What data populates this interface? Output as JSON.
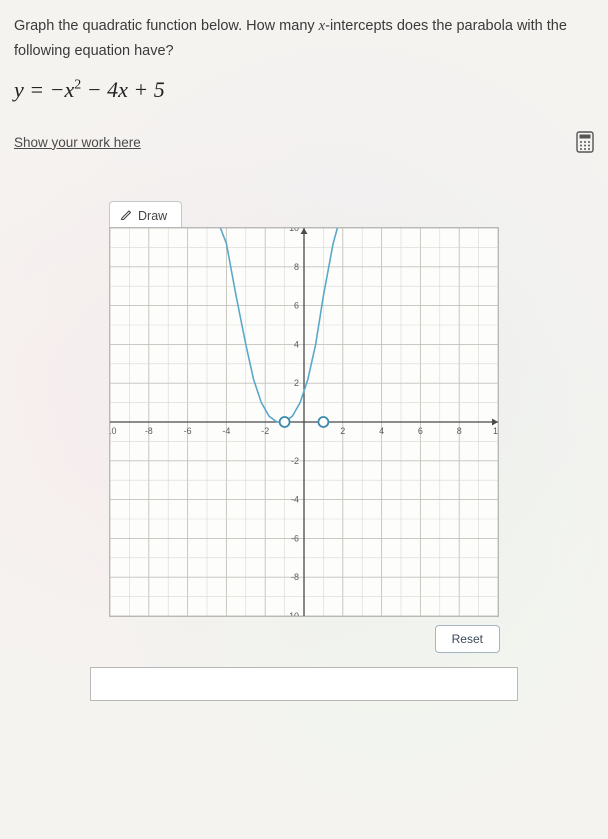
{
  "question": {
    "prompt_text": "Graph the quadratic function below. How many x-intercepts does the parabola with the following equation have?",
    "equation_html": "y = −x² − 4x + 5"
  },
  "work": {
    "link_text": "Show your work here",
    "calc_icon_name": "calculator-icon"
  },
  "draw_tool": {
    "label": "Draw",
    "pen_icon_name": "pen-icon"
  },
  "chart": {
    "type": "line",
    "xlim": [
      -10,
      10
    ],
    "ylim": [
      -10,
      10
    ],
    "xtick_step": 2,
    "ytick_step": 2,
    "xticks": [
      -10,
      -8,
      -6,
      -4,
      -2,
      2,
      4,
      6,
      8,
      10
    ],
    "yticks": [
      -10,
      -8,
      -6,
      -4,
      -2,
      2,
      4,
      6,
      8,
      10
    ],
    "grid_step_minor": 1,
    "grid_color_minor": "#d8d8d0",
    "grid_color_major": "#c2c2ba",
    "axis_color": "#4a4a4a",
    "axis_width": 1.3,
    "tick_label_fontsize": 9,
    "tick_label_color": "#5a5a5a",
    "curve": {
      "color": "#5aa8c8",
      "width": 1.6,
      "points": [
        [
          -4.5,
          10.5
        ],
        [
          -4,
          9.2
        ],
        [
          -3.5,
          6.5
        ],
        [
          -3,
          4
        ],
        [
          -2.6,
          2.2
        ],
        [
          -2.2,
          1
        ],
        [
          -1.8,
          0.3
        ],
        [
          -1.4,
          0
        ],
        [
          -1,
          0
        ],
        [
          -0.6,
          0.3
        ],
        [
          -0.2,
          1
        ],
        [
          0.2,
          2.2
        ],
        [
          0.6,
          4
        ],
        [
          1,
          6.5
        ],
        [
          1.5,
          9.2
        ],
        [
          2,
          11
        ]
      ]
    },
    "markers": {
      "radius": 5,
      "fill": "#ffffff",
      "stroke": "#3a8ab0",
      "stroke_width": 1.8,
      "points": [
        [
          -1,
          0
        ],
        [
          1,
          0
        ]
      ]
    },
    "background_color": "#fdfdfc"
  },
  "reset": {
    "label": "Reset"
  }
}
